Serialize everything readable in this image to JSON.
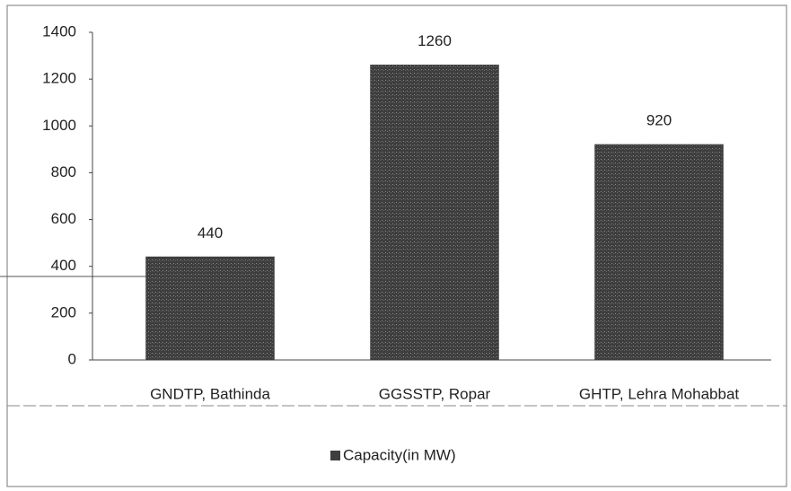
{
  "chart_data": {
    "type": "bar",
    "categories": [
      "GNDTP, Bathinda",
      "GGSSTP, Ropar",
      "GHTP, Lehra Mohabbat"
    ],
    "series": [
      {
        "name": "Capacity(in MW)",
        "color": "#3e3e3e",
        "values": [
          440,
          1260,
          920
        ]
      }
    ],
    "ylim": [
      0,
      1400
    ],
    "yticks": [
      0,
      200,
      400,
      600,
      800,
      1000,
      1200,
      1400
    ],
    "grid": false,
    "legend": "bottom"
  }
}
